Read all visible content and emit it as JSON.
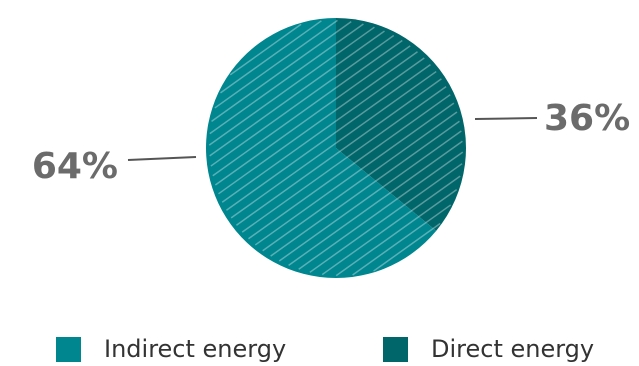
{
  "chart_data": {
    "type": "pie",
    "categories": [
      "Indirect energy",
      "Direct energy"
    ],
    "values": [
      64,
      36
    ],
    "value_labels": [
      "64%",
      "36%"
    ],
    "colors": [
      "#00868f",
      "#00666a"
    ],
    "title": "",
    "legend_position": "bottom"
  },
  "legend": {
    "items": [
      {
        "label": "Indirect energy",
        "color": "#00868f"
      },
      {
        "label": "Direct energy",
        "color": "#00666a"
      }
    ]
  },
  "labels": {
    "indirect_pct": "64%",
    "direct_pct": "36%"
  }
}
